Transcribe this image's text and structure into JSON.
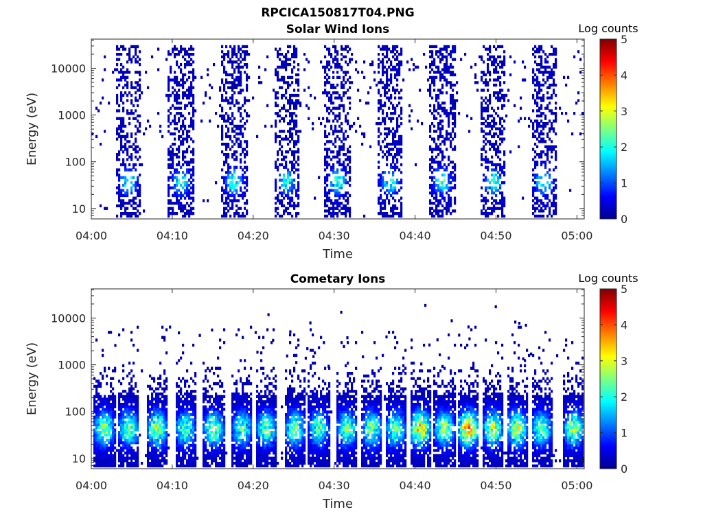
{
  "figure_title": "RPCICA150817T04.PNG",
  "colors": {
    "jet": [
      "#00008f",
      "#0000ff",
      "#0080ff",
      "#00ffff",
      "#80ff80",
      "#ffff00",
      "#ff8000",
      "#ff0000",
      "#800000"
    ]
  },
  "chart_data": [
    {
      "type": "heatmap",
      "title": "Solar Wind Ions",
      "xlabel": "Time",
      "ylabel": "Energy (eV)",
      "xlim": [
        "04:00",
        "05:00"
      ],
      "ylim_eV": [
        6,
        42000
      ],
      "y_scale": "log",
      "x_ticks": [
        "04:00",
        "04:10",
        "04:20",
        "04:30",
        "04:40",
        "04:50",
        "05:00"
      ],
      "y_ticks": [
        "10",
        "100",
        "1000",
        "10000"
      ],
      "colorbar": {
        "label": "Log counts",
        "min": 0,
        "max": 5,
        "ticks": [
          "0",
          "1",
          "2",
          "3",
          "4",
          "5"
        ]
      },
      "bursts_min": [
        4.5,
        11.0,
        17.5,
        24.0,
        30.3,
        36.8,
        43.2,
        49.5,
        55.8
      ],
      "burst_width_min": 3.2,
      "energy_range_eV": [
        6,
        30000
      ],
      "peak_energy_eV": 35,
      "peak_log_counts": 2.2,
      "background_sparse_eV": [
        300,
        20000
      ]
    },
    {
      "type": "heatmap",
      "title": "Cometary Ions",
      "xlabel": "Time",
      "ylabel": "Energy (eV)",
      "xlim": [
        "04:00",
        "05:00"
      ],
      "ylim_eV": [
        6,
        42000
      ],
      "y_scale": "log",
      "x_ticks": [
        "04:00",
        "04:10",
        "04:20",
        "04:30",
        "04:40",
        "04:50",
        "05:00"
      ],
      "y_ticks": [
        "10",
        "100",
        "1000",
        "10000"
      ],
      "colorbar": {
        "label": "Log counts",
        "min": 0,
        "max": 5,
        "ticks": [
          "0",
          "1",
          "2",
          "3",
          "4",
          "5"
        ]
      },
      "bursts_min": [
        1.5,
        4.5,
        8.0,
        11.5,
        15.0,
        18.5,
        21.5,
        25.0,
        28.0,
        31.5,
        34.5,
        37.5,
        40.5,
        43.5,
        46.5,
        49.5,
        52.5,
        55.5,
        59.5
      ],
      "burst_width_min": 2.6,
      "energy_range_eV": [
        6,
        1500
      ],
      "peak_energy_eV": 40,
      "peak_log_counts": [
        2.9,
        2.6,
        3.0,
        2.5,
        2.8,
        2.4,
        2.6,
        2.7,
        2.5,
        2.6,
        2.8,
        2.7,
        3.7,
        2.9,
        4.0,
        3.0,
        3.1,
        2.6,
        2.9
      ]
    }
  ]
}
